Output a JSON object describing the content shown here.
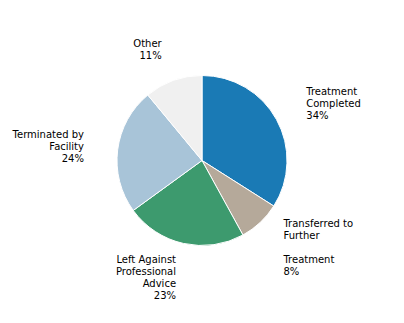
{
  "chart_data": {
    "type": "pie",
    "categories": [
      "Treatment\nCompleted",
      "Transferred to\nFurther\n\nTreatment",
      "Left Against\nProfessional\nAdvice",
      "Terminated by\nFacility",
      "Other"
    ],
    "values": [
      34,
      8,
      23,
      24,
      11
    ],
    "value_labels": [
      "34%",
      "8%",
      "23%",
      "24%",
      "11%"
    ],
    "colors": [
      "#1a7ab5",
      "#b5a99a",
      "#3d9a6e",
      "#a8c4d8",
      "#f0f0f0"
    ],
    "data_labels": true
  }
}
